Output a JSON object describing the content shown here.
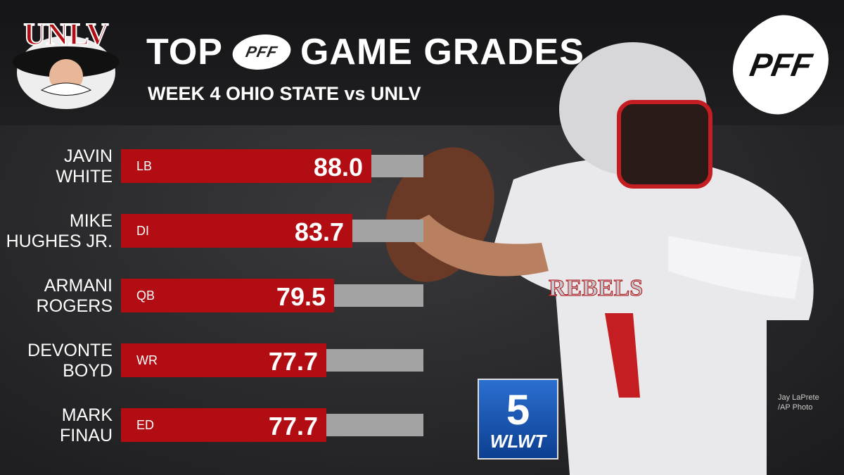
{
  "header": {
    "title_left": "TOP",
    "title_logo": "PFF",
    "title_right": "GAME GRADES",
    "subtitle": "WEEK 4 OHIO STATE vs UNLV"
  },
  "logos": {
    "team": "UNLV",
    "brand": "PFF"
  },
  "badge": {
    "channel_number": "5",
    "call_sign": "WLWT"
  },
  "credit": {
    "line1": "Jay LaPrete",
    "line2": "/AP Photo"
  },
  "colors": {
    "bar": "#b10d12",
    "track": "#a3a3a3"
  },
  "chart_data": {
    "type": "bar",
    "orientation": "horizontal",
    "title": "TOP PFF GAME GRADES",
    "xlim": [
      30.5,
      100
    ],
    "rows": [
      {
        "name_line1": "JAVIN",
        "name_line2": "WHITE",
        "position": "LB",
        "value": 88.0,
        "label": "88.0"
      },
      {
        "name_line1": "MIKE",
        "name_line2": "HUGHES JR.",
        "position": "DI",
        "value": 83.7,
        "label": "83.7"
      },
      {
        "name_line1": "ARMANI",
        "name_line2": "ROGERS",
        "position": "QB",
        "value": 79.5,
        "label": "79.5"
      },
      {
        "name_line1": "DEVONTE",
        "name_line2": "BOYD",
        "position": "WR",
        "value": 77.7,
        "label": "77.7"
      },
      {
        "name_line1": "MARK",
        "name_line2": "FINAU",
        "position": "ED",
        "value": 77.7,
        "label": "77.7"
      }
    ]
  }
}
